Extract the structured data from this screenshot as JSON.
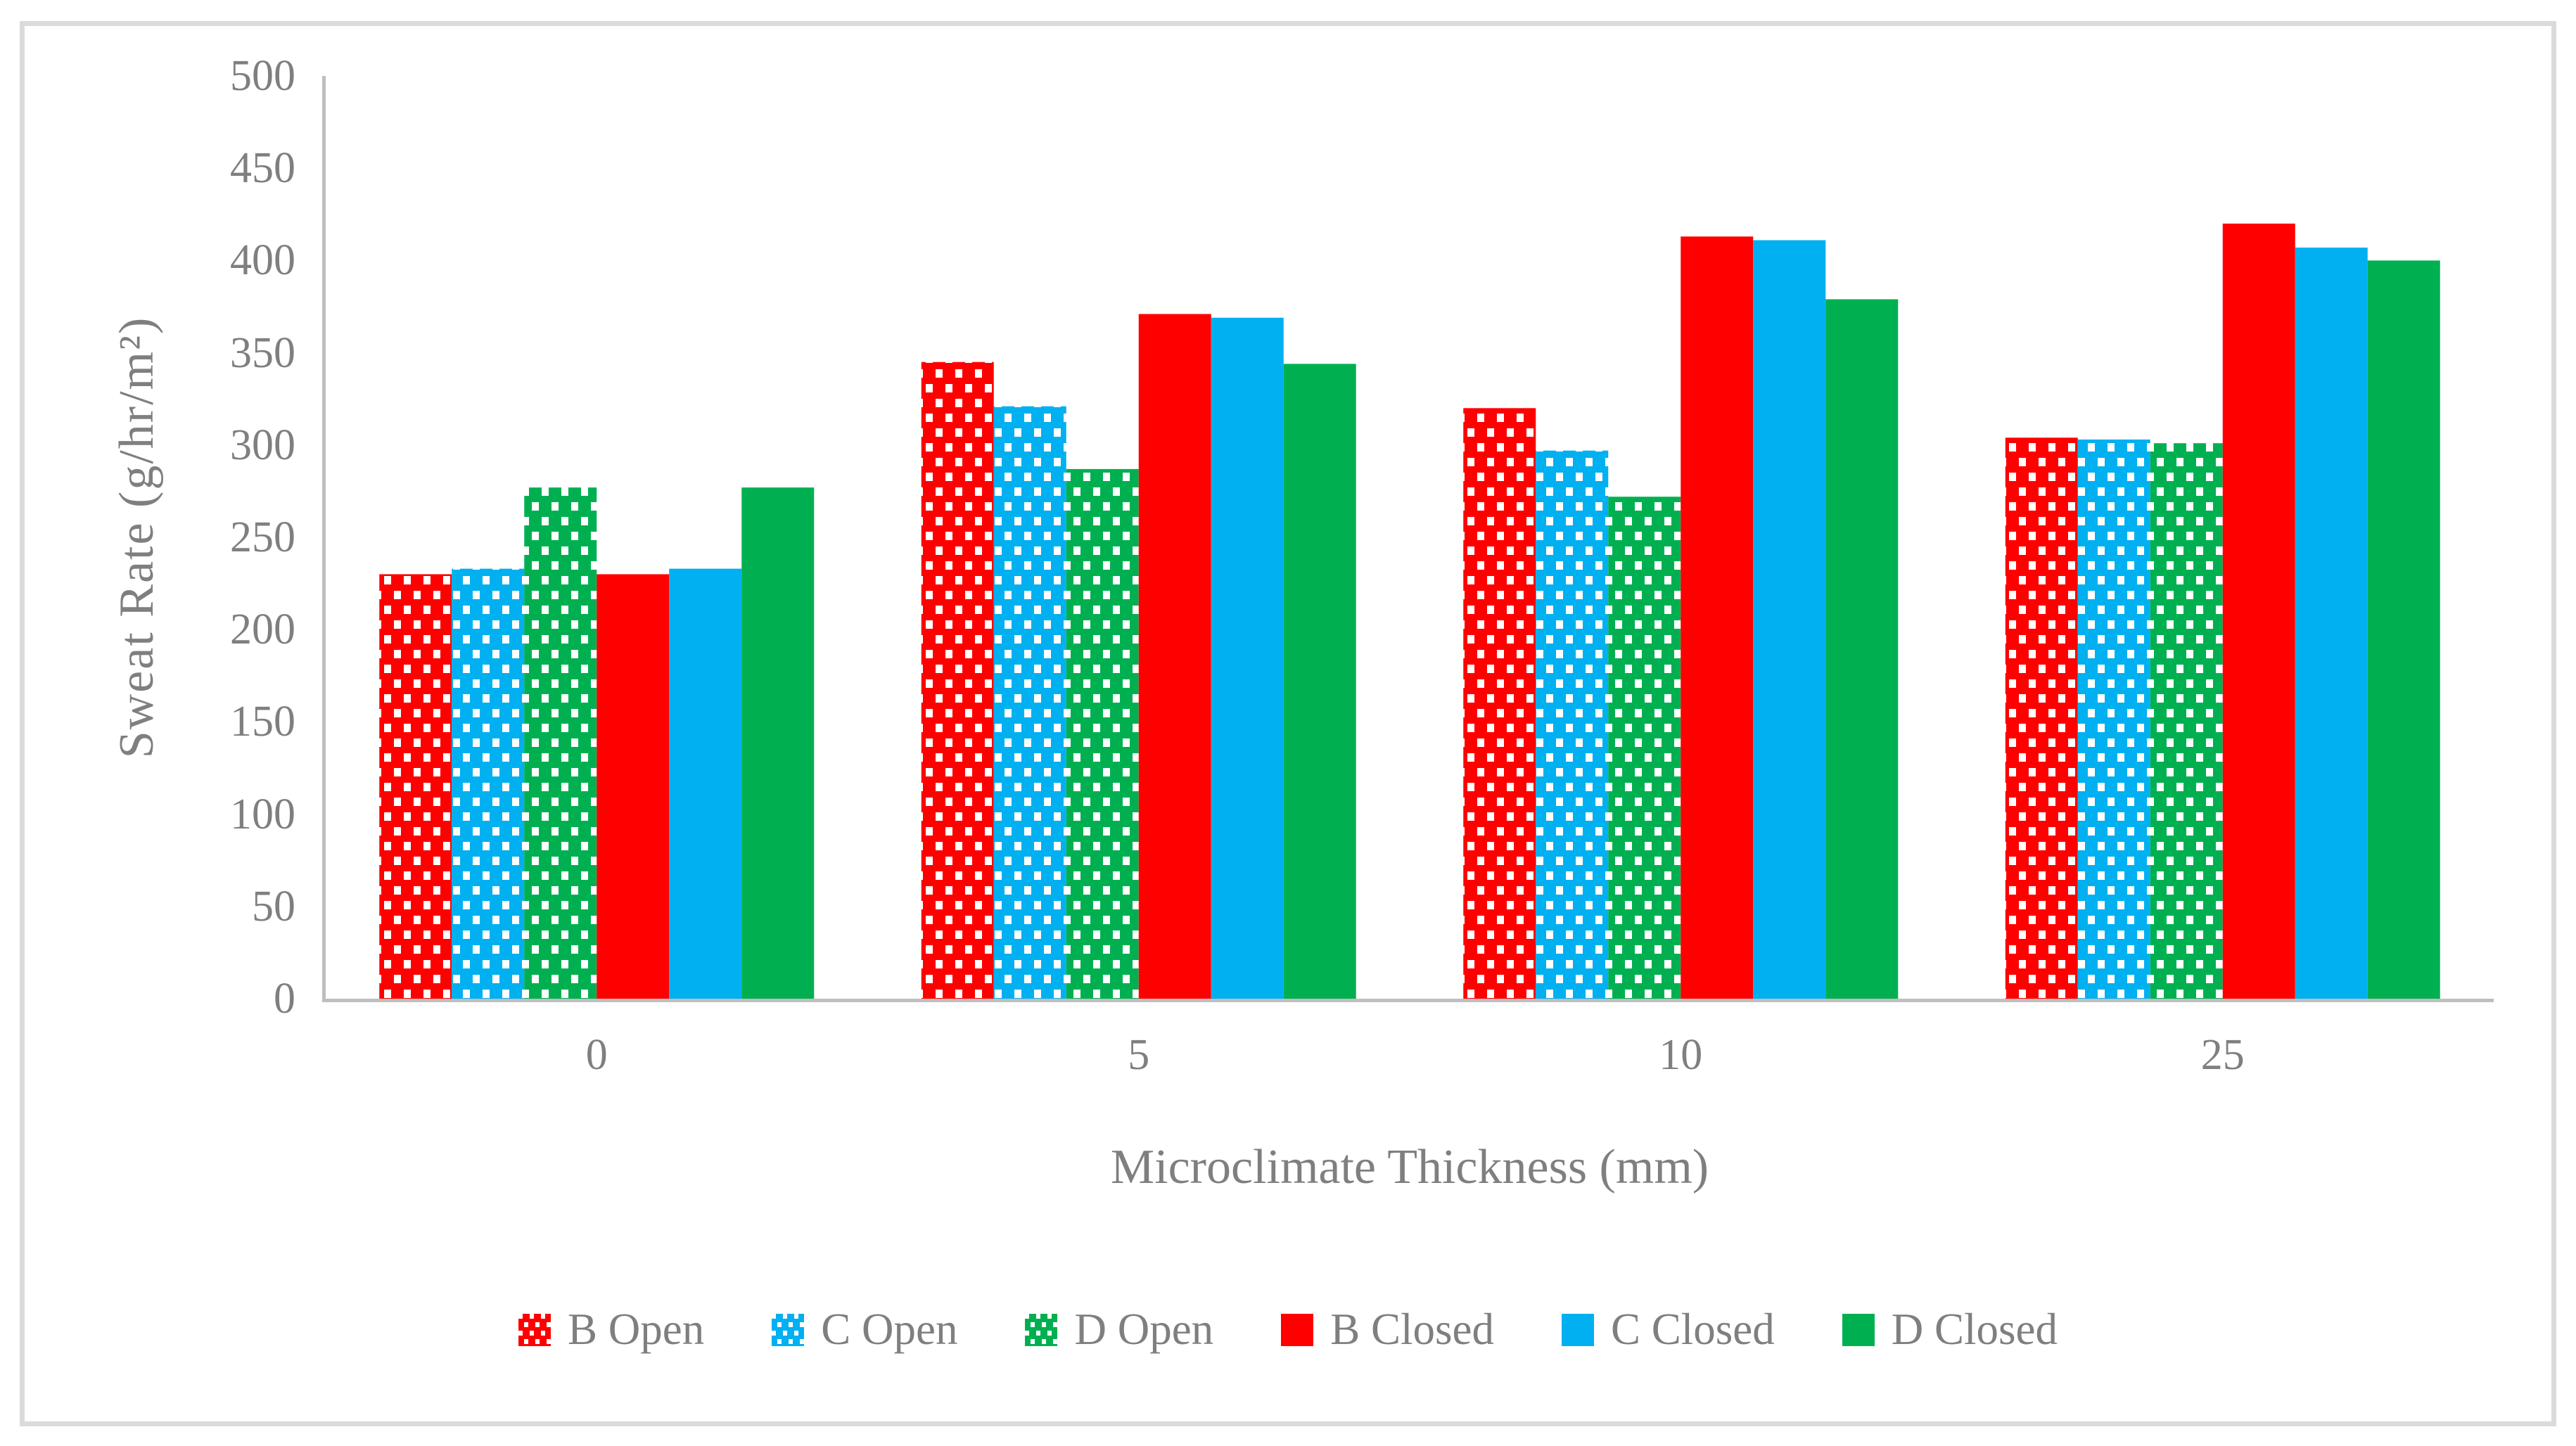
{
  "figure": {
    "title": "",
    "border_color": "#DBDBDB",
    "background": "#ffffff"
  },
  "colors": {
    "axis_text": "#7F7F7F",
    "axis_line": "#BFBFBF",
    "red": "#FF0000",
    "blue": "#00B0F0",
    "green": "#00B050",
    "pattern_dot": "#FFFFFF"
  },
  "chart_data": {
    "type": "bar",
    "title": "",
    "xlabel": "Microclimate Thickness (mm)",
    "ylabel": "Sweat Rate (g/hr/m²)",
    "categories": [
      "0",
      "5",
      "10",
      "25"
    ],
    "ylim": [
      0,
      500
    ],
    "ytick_step": 50,
    "yticks": [
      0,
      50,
      100,
      150,
      200,
      250,
      300,
      350,
      400,
      450,
      500
    ],
    "grid": false,
    "legend_position": "bottom",
    "series": [
      {
        "name": "B Open",
        "color": "#FF0000",
        "pattern": "dotted",
        "values": [
          230,
          345,
          320,
          304
        ]
      },
      {
        "name": "C Open",
        "color": "#00B0F0",
        "pattern": "dotted",
        "values": [
          233,
          321,
          297,
          303
        ]
      },
      {
        "name": "D Open",
        "color": "#00B050",
        "pattern": "dotted",
        "values": [
          277,
          287,
          272,
          301
        ]
      },
      {
        "name": "B Closed",
        "color": "#FF0000",
        "pattern": "solid",
        "values": [
          230,
          371,
          413,
          420
        ]
      },
      {
        "name": "C Closed",
        "color": "#00B0F0",
        "pattern": "solid",
        "values": [
          233,
          369,
          411,
          407
        ]
      },
      {
        "name": "D Closed",
        "color": "#00B050",
        "pattern": "solid",
        "values": [
          277,
          344,
          379,
          400
        ]
      }
    ]
  }
}
